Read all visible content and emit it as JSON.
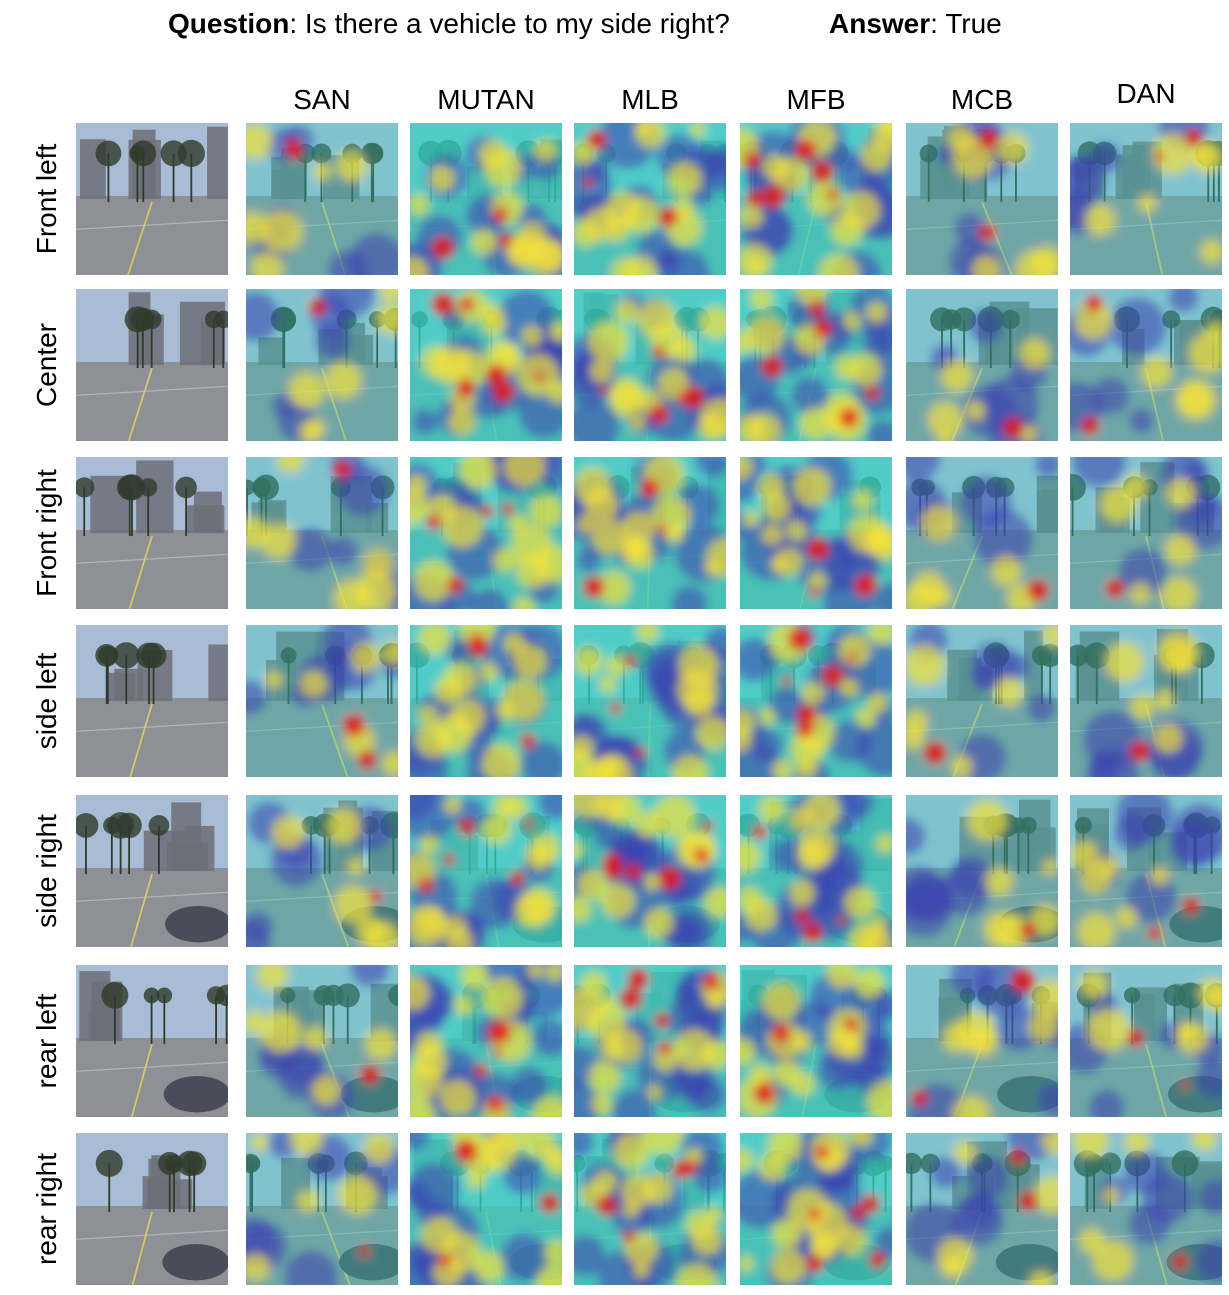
{
  "header": {
    "question_label": "Question",
    "question_text": ": Is there a vehicle to my side right?",
    "answer_label": "Answer",
    "answer_text": ": True"
  },
  "columns": [
    "SAN",
    "MUTAN",
    "MLB",
    "MFB",
    "MCB",
    "DAN"
  ],
  "rows": [
    "Front left",
    "Center",
    "Front right",
    "side left",
    "side right",
    "rear left",
    "rear right"
  ],
  "colors": {
    "sky": "#a9bcd6",
    "road": "#8f8f96",
    "building": "#6d6f78",
    "tree": "#2f3b2c",
    "heat_low": "#3b3fb0",
    "heat_mid": "#33d1c2",
    "heat_high": "#f5e33a",
    "heat_peak": "#e01818"
  }
}
